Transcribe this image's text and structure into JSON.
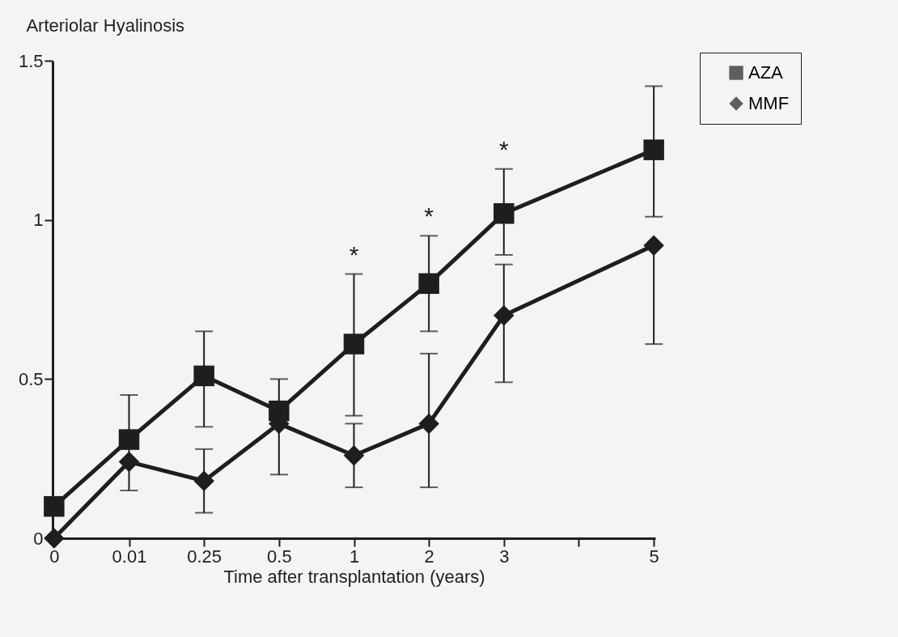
{
  "chart_data": {
    "type": "line",
    "title": "Arteriolar Hyalinosis",
    "xlabel": "Time after transplantation (years)",
    "categories": [
      "0",
      "0.01",
      "0.25",
      "0.5",
      "1",
      "2",
      "3",
      null,
      "5"
    ],
    "series": [
      {
        "name": "AZA",
        "color": "#1e1e1e",
        "marker": "square",
        "values": [
          0.1,
          0.31,
          0.51,
          0.4,
          0.61,
          0.8,
          1.02,
          null,
          1.22
        ],
        "errors": [
          null,
          [
            0.15,
            0.45
          ],
          [
            0.35,
            0.65
          ],
          [
            0.2,
            0.5
          ],
          [
            0.385,
            0.83
          ],
          [
            0.65,
            0.95
          ],
          [
            0.89,
            1.16
          ],
          null,
          [
            1.01,
            1.42
          ]
        ]
      },
      {
        "name": "MMF",
        "color": "#1e1e1e",
        "marker": "diamond",
        "values": [
          0.0,
          0.24,
          0.18,
          0.36,
          0.26,
          0.36,
          0.7,
          null,
          0.92
        ],
        "errors": [
          null,
          null,
          [
            0.08,
            0.28
          ],
          null,
          [
            0.16,
            0.36
          ],
          [
            0.16,
            0.58
          ],
          [
            0.49,
            0.86
          ],
          null,
          [
            0.61,
            0.92
          ]
        ]
      }
    ],
    "ylim": [
      0,
      1.5
    ],
    "yticks": [
      0,
      0.5,
      1,
      1.5
    ],
    "grid": false,
    "legend": "top right",
    "line_style": "solid",
    "annotations": [
      {
        "text": "*",
        "x": "1",
        "y": 0.83
      },
      {
        "text": "*",
        "x": "2",
        "y": 0.95
      },
      {
        "text": "*",
        "x": "3",
        "y": 1.16
      }
    ]
  }
}
